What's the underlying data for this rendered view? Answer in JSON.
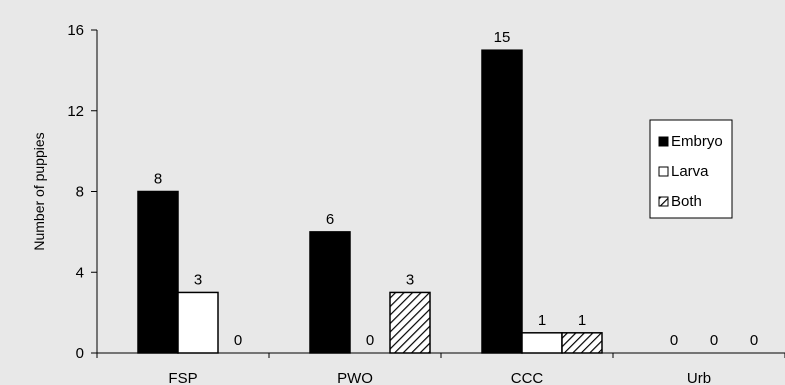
{
  "chart_data": {
    "type": "bar",
    "title": "",
    "xlabel": "",
    "ylabel": "Number of puppies",
    "ylim": [
      0,
      16
    ],
    "yticks": [
      0,
      4,
      8,
      12,
      16
    ],
    "grid": false,
    "legend_position": "right",
    "categories": [
      "FSP",
      "PWO",
      "CCC",
      "Urb"
    ],
    "series": [
      {
        "name": "Embryo",
        "values": [
          8,
          6,
          15,
          0
        ],
        "fill": "#000000",
        "pattern": "solid"
      },
      {
        "name": "Larva",
        "values": [
          3,
          0,
          1,
          0
        ],
        "fill": "#ffffff",
        "pattern": "open"
      },
      {
        "name": "Both",
        "values": [
          0,
          3,
          1,
          0
        ],
        "fill": "#ffffff",
        "pattern": "hatch"
      }
    ],
    "colors": {
      "background": "#e8e8e8",
      "page": "#ffffff"
    }
  }
}
